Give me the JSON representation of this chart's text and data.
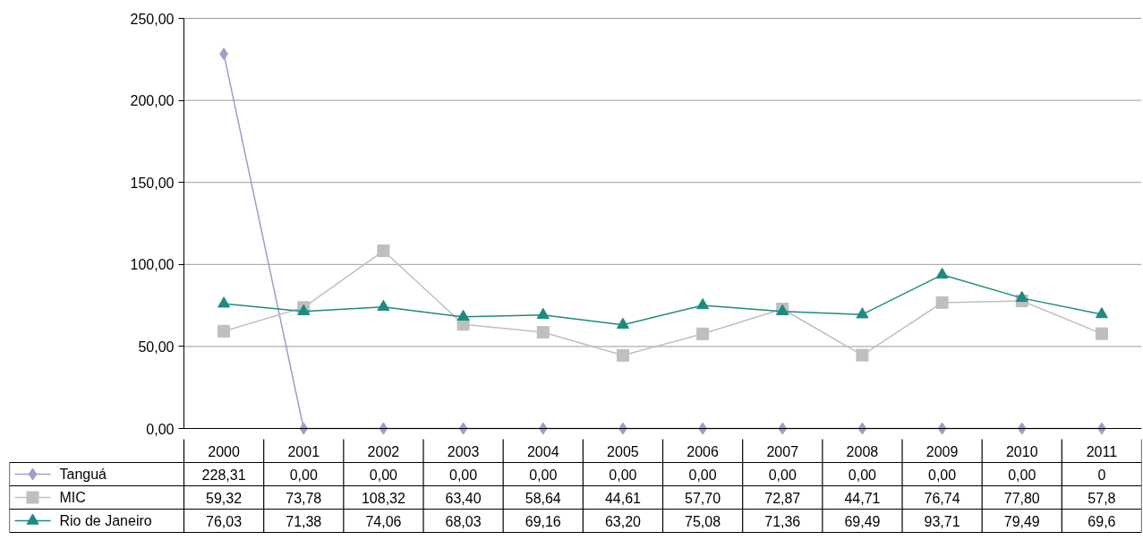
{
  "chart_data": {
    "type": "line",
    "categories": [
      "2000",
      "2001",
      "2002",
      "2003",
      "2004",
      "2005",
      "2006",
      "2007",
      "2008",
      "2009",
      "2010",
      "2011"
    ],
    "series": [
      {
        "name": "Tanguá",
        "color": "#a899c8",
        "marker": "diamond",
        "values": [
          228.31,
          0,
          0,
          0,
          0,
          0,
          0,
          0,
          0,
          0,
          0,
          0
        ],
        "value_labels": [
          "228,31",
          "0,00",
          "0,00",
          "0,00",
          "0,00",
          "0,00",
          "0,00",
          "0,00",
          "0,00",
          "0,00",
          "0,00",
          "0"
        ]
      },
      {
        "name": "MIC",
        "color": "#bfbfbf",
        "marker": "square",
        "values": [
          59.32,
          73.78,
          108.32,
          63.4,
          58.64,
          44.61,
          57.7,
          72.87,
          44.71,
          76.74,
          77.8,
          57.8
        ],
        "value_labels": [
          "59,32",
          "73,78",
          "108,32",
          "63,40",
          "58,64",
          "44,61",
          "57,70",
          "72,87",
          "44,71",
          "76,74",
          "77,80",
          "57,8"
        ]
      },
      {
        "name": "Rio de Janeiro",
        "color": "#1f8a80",
        "marker": "triangle",
        "values": [
          76.03,
          71.38,
          74.06,
          68.03,
          69.16,
          63.2,
          75.08,
          71.36,
          69.49,
          93.71,
          79.49,
          69.6
        ],
        "value_labels": [
          "76,03",
          "71,38",
          "74,06",
          "68,03",
          "69,16",
          "63,20",
          "75,08",
          "71,36",
          "69,49",
          "93,71",
          "79,49",
          "69,6"
        ]
      }
    ],
    "ylim": [
      0,
      250
    ],
    "yticks": [
      {
        "value": 0,
        "label": "0,00"
      },
      {
        "value": 50,
        "label": "50,00"
      },
      {
        "value": 100,
        "label": "100,00"
      },
      {
        "value": 150,
        "label": "150,00"
      },
      {
        "value": 200,
        "label": "200,00"
      },
      {
        "value": 250,
        "label": "250,00"
      }
    ],
    "grid": "y",
    "legend": "bottom",
    "line_style": "solid"
  }
}
